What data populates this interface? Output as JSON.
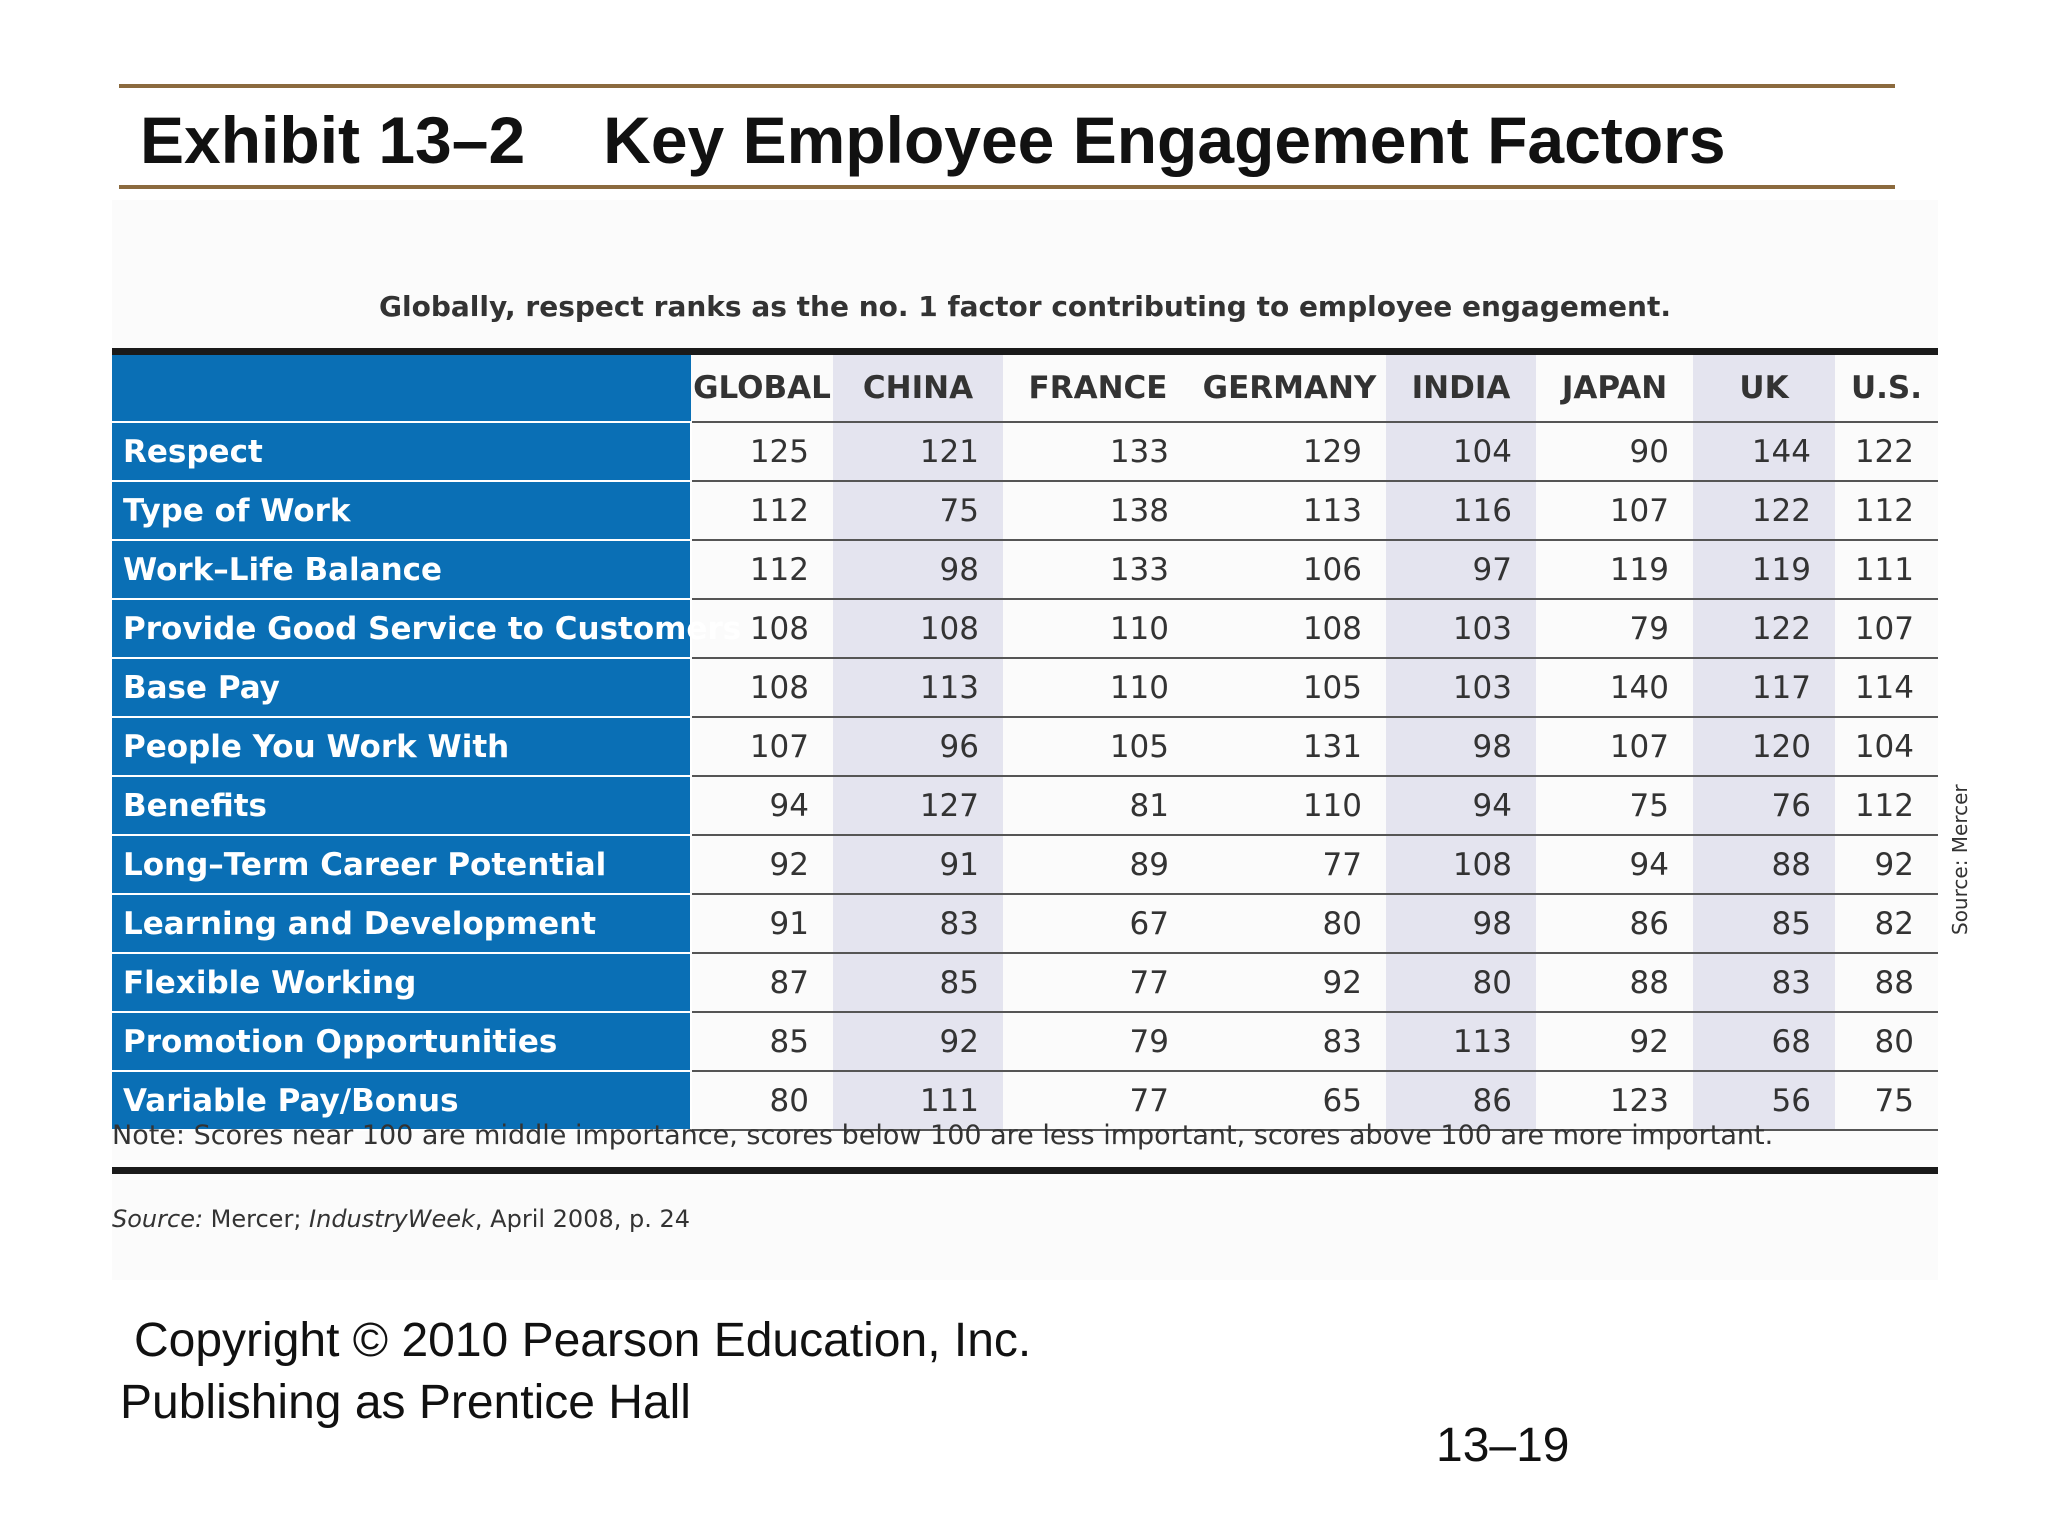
{
  "slide": {
    "exhibit_label": "Exhibit 13–2",
    "title": "Key Employee Engagement Factors",
    "copyright_line1": "Copyright © 2010 Pearson Education, Inc.",
    "copyright_line2": "Publishing as Prentice Hall",
    "page_number": "13–19"
  },
  "exhibit": {
    "subtitle": "Globally, respect ranks as the no. 1 factor contributing to employee engagement.",
    "columns": [
      "GLOBAL",
      "CHINA",
      "FRANCE",
      "GERMANY",
      "INDIA",
      "JAPAN",
      "UK",
      "U.S."
    ],
    "rows": [
      {
        "label": "Respect",
        "values": [
          "125",
          "121",
          "133",
          "129",
          "104",
          "90",
          "144",
          "122"
        ]
      },
      {
        "label": "Type of Work",
        "values": [
          "112",
          "75",
          "138",
          "113",
          "116",
          "107",
          "122",
          "112"
        ]
      },
      {
        "label": "Work–Life Balance",
        "values": [
          "112",
          "98",
          "133",
          "106",
          "97",
          "119",
          "119",
          "111"
        ]
      },
      {
        "label": "Provide Good Service to Customers",
        "values": [
          "108",
          "108",
          "110",
          "108",
          "103",
          "79",
          "122",
          "107"
        ]
      },
      {
        "label": "Base Pay",
        "values": [
          "108",
          "113",
          "110",
          "105",
          "103",
          "140",
          "117",
          "114"
        ]
      },
      {
        "label": "People You Work With",
        "values": [
          "107",
          "96",
          "105",
          "131",
          "98",
          "107",
          "120",
          "104"
        ]
      },
      {
        "label": "Benefits",
        "values": [
          "94",
          "127",
          "81",
          "110",
          "94",
          "75",
          "76",
          "112"
        ]
      },
      {
        "label": "Long–Term Career Potential",
        "values": [
          "92",
          "91",
          "89",
          "77",
          "108",
          "94",
          "88",
          "92"
        ]
      },
      {
        "label": "Learning and Development",
        "values": [
          "91",
          "83",
          "67",
          "80",
          "98",
          "86",
          "85",
          "82"
        ]
      },
      {
        "label": "Flexible Working",
        "values": [
          "87",
          "85",
          "77",
          "92",
          "80",
          "88",
          "83",
          "88"
        ]
      },
      {
        "label": "Promotion Opportunities",
        "values": [
          "85",
          "92",
          "79",
          "83",
          "113",
          "92",
          "68",
          "80"
        ]
      },
      {
        "label": "Variable Pay/Bonus",
        "values": [
          "80",
          "111",
          "77",
          "65",
          "86",
          "123",
          "56",
          "75"
        ]
      }
    ],
    "note": "Note: Scores near 100 are middle importance, scores below 100 are less important, scores above 100 are more important.",
    "source_label": "Source:",
    "source_text1": " Mercer; ",
    "source_publication": "IndustryWeek",
    "source_text2": ", April 2008, p. 24",
    "vertical_source": "Source: Mercer",
    "colors": {
      "row_header_blue": "#0a6fb5",
      "shaded_column": "#e4e4ef",
      "rule_brown": "#8b6a3e"
    }
  }
}
